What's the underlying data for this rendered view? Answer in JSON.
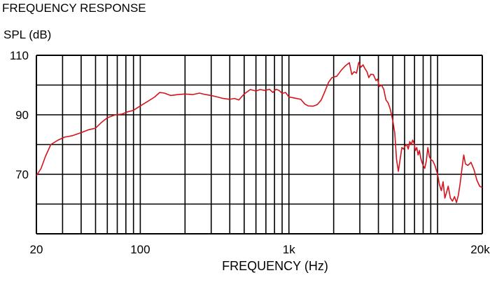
{
  "chart_data": {
    "type": "line",
    "title": "FREQUENCY RESPONSE",
    "ylabel": "SPL (dB)",
    "xlabel": "FREQUENCY (Hz)",
    "x_scale": "log",
    "xlim": [
      20,
      20000
    ],
    "ylim": [
      50,
      110
    ],
    "x_tick_labels": [
      {
        "value": 20,
        "label": "20"
      },
      {
        "value": 100,
        "label": "100"
      },
      {
        "value": 1000,
        "label": "1k"
      },
      {
        "value": 20000,
        "label": "20k"
      }
    ],
    "y_tick_labels": [
      {
        "value": 110,
        "label": "110"
      },
      {
        "value": 90,
        "label": "90"
      },
      {
        "value": 70,
        "label": "70"
      }
    ],
    "y_gridlines": [
      60,
      70,
      80,
      90,
      100,
      110
    ],
    "x_gridlines": [
      20,
      30,
      40,
      50,
      60,
      70,
      80,
      90,
      100,
      200,
      300,
      400,
      500,
      600,
      700,
      800,
      900,
      1000,
      2000,
      3000,
      4000,
      5000,
      6000,
      7000,
      8000,
      9000,
      10000,
      20000
    ],
    "grid": true,
    "colors": {
      "series": "#d4141c",
      "grid": "#000000"
    },
    "series": [
      {
        "points": [
          [
            20,
            69.5
          ],
          [
            21.5,
            72
          ],
          [
            23,
            76
          ],
          [
            25,
            80
          ],
          [
            28,
            81.5
          ],
          [
            31,
            82.5
          ],
          [
            35,
            83
          ],
          [
            40,
            84
          ],
          [
            45,
            85
          ],
          [
            50,
            85.5
          ],
          [
            55,
            87.5
          ],
          [
            60,
            89
          ],
          [
            68,
            90
          ],
          [
            75,
            90.2
          ],
          [
            82,
            91
          ],
          [
            90,
            91.5
          ],
          [
            100,
            93
          ],
          [
            112,
            94.5
          ],
          [
            125,
            96
          ],
          [
            135,
            97.5
          ],
          [
            145,
            97.3
          ],
          [
            160,
            96.5
          ],
          [
            180,
            96.8
          ],
          [
            200,
            97
          ],
          [
            225,
            96.8
          ],
          [
            250,
            97.3
          ],
          [
            275,
            96.8
          ],
          [
            300,
            96.5
          ],
          [
            330,
            96
          ],
          [
            360,
            95.5
          ],
          [
            400,
            95.2
          ],
          [
            430,
            95.5
          ],
          [
            460,
            95
          ],
          [
            500,
            97
          ],
          [
            550,
            98.5
          ],
          [
            600,
            98
          ],
          [
            640,
            98.5
          ],
          [
            690,
            98.2
          ],
          [
            740,
            98.6
          ],
          [
            780,
            97.5
          ],
          [
            820,
            98.6
          ],
          [
            860,
            98.2
          ],
          [
            900,
            97.2
          ],
          [
            950,
            97.5
          ],
          [
            1000,
            96
          ],
          [
            1100,
            95.6
          ],
          [
            1200,
            95.2
          ],
          [
            1280,
            93.6
          ],
          [
            1350,
            93
          ],
          [
            1450,
            92.9
          ],
          [
            1550,
            93.4
          ],
          [
            1650,
            95
          ],
          [
            1750,
            98
          ],
          [
            1850,
            101
          ],
          [
            1950,
            102.5
          ],
          [
            2100,
            103
          ],
          [
            2250,
            105
          ],
          [
            2400,
            106.5
          ],
          [
            2550,
            107.5
          ],
          [
            2650,
            103.5
          ],
          [
            2750,
            104.5
          ],
          [
            2850,
            104
          ],
          [
            2950,
            107.6
          ],
          [
            3050,
            106
          ],
          [
            3150,
            106.8
          ],
          [
            3250,
            105.5
          ],
          [
            3350,
            104.5
          ],
          [
            3450,
            102.5
          ],
          [
            3550,
            103.6
          ],
          [
            3700,
            103.5
          ],
          [
            3850,
            101.5
          ],
          [
            3950,
            102
          ],
          [
            4050,
            99.5
          ],
          [
            4200,
            100
          ],
          [
            4350,
            98.5
          ],
          [
            4500,
            95
          ],
          [
            4650,
            94
          ],
          [
            4800,
            92
          ],
          [
            5000,
            88
          ],
          [
            5150,
            84
          ],
          [
            5300,
            75
          ],
          [
            5450,
            71
          ],
          [
            5600,
            75
          ],
          [
            5750,
            79
          ],
          [
            5900,
            78.5
          ],
          [
            6050,
            79.5
          ],
          [
            6200,
            80
          ],
          [
            6350,
            78.5
          ],
          [
            6500,
            81
          ],
          [
            6650,
            80
          ],
          [
            6800,
            81.5
          ],
          [
            6950,
            80.5
          ],
          [
            7100,
            78
          ],
          [
            7250,
            79
          ],
          [
            7400,
            76.5
          ],
          [
            7550,
            78
          ],
          [
            7700,
            75.5
          ],
          [
            7850,
            74
          ],
          [
            8000,
            73
          ],
          [
            8200,
            72
          ],
          [
            8400,
            74.5
          ],
          [
            8600,
            79
          ],
          [
            8800,
            76
          ],
          [
            9000,
            75
          ],
          [
            9300,
            74.5
          ],
          [
            9600,
            73
          ],
          [
            10000,
            70
          ],
          [
            10300,
            66.5
          ],
          [
            10600,
            64.5
          ],
          [
            10900,
            67.5
          ],
          [
            11200,
            62
          ],
          [
            11500,
            64
          ],
          [
            11800,
            66
          ],
          [
            12200,
            62
          ],
          [
            12600,
            61
          ],
          [
            13000,
            62.5
          ],
          [
            13400,
            60.5
          ],
          [
            13800,
            63
          ],
          [
            14200,
            67
          ],
          [
            14600,
            72
          ],
          [
            15000,
            76.5
          ],
          [
            15400,
            73.5
          ],
          [
            16000,
            73
          ],
          [
            16800,
            74
          ],
          [
            17600,
            71.5
          ],
          [
            18400,
            68
          ],
          [
            19200,
            66
          ],
          [
            20000,
            65.5
          ]
        ]
      }
    ]
  }
}
